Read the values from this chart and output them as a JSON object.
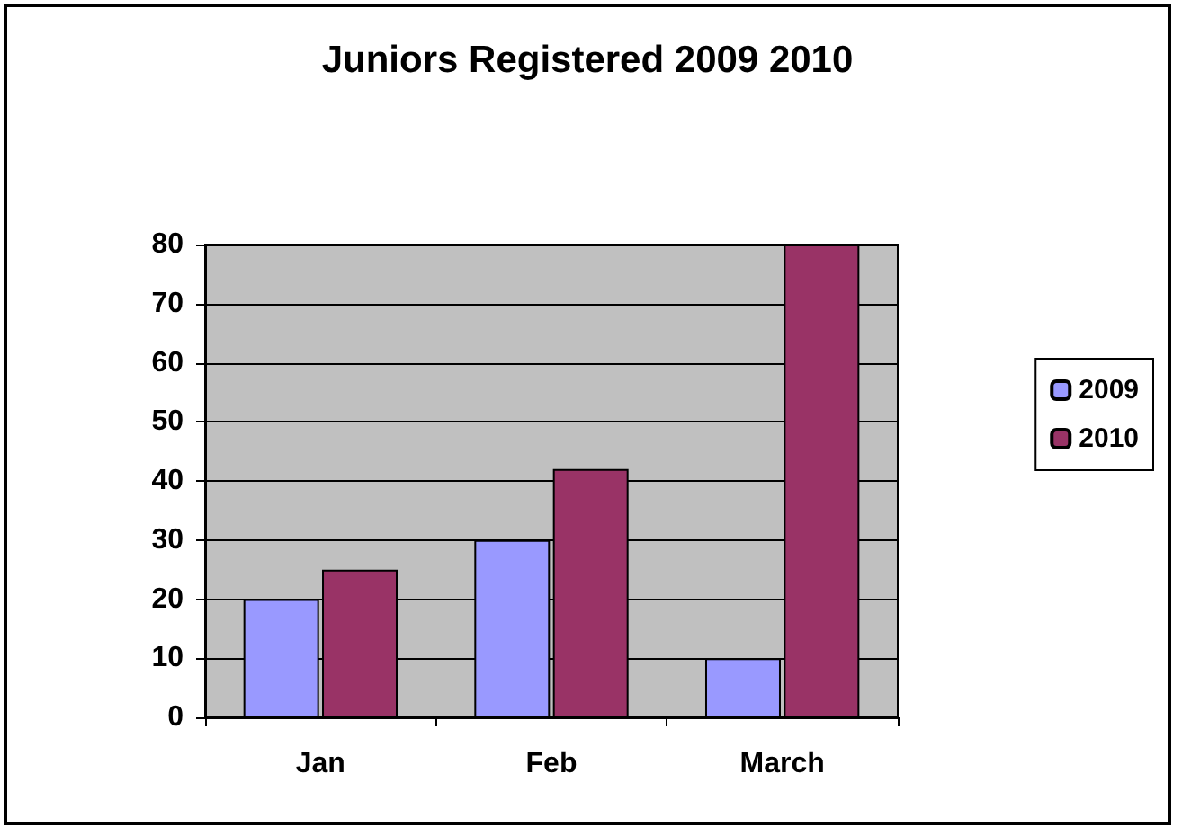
{
  "chart_data": {
    "type": "bar",
    "title": "Juniors Registered 2009 2010",
    "categories": [
      "Jan",
      "Feb",
      "March"
    ],
    "series": [
      {
        "name": "2009",
        "color": "#9999ff",
        "values": [
          20,
          30,
          10
        ]
      },
      {
        "name": "2010",
        "color": "#993366",
        "values": [
          25,
          42,
          80
        ]
      }
    ],
    "ylim": [
      0,
      80
    ],
    "yticks": [
      0,
      10,
      20,
      30,
      40,
      50,
      60,
      70,
      80
    ],
    "grid": "y",
    "legend": "right"
  }
}
